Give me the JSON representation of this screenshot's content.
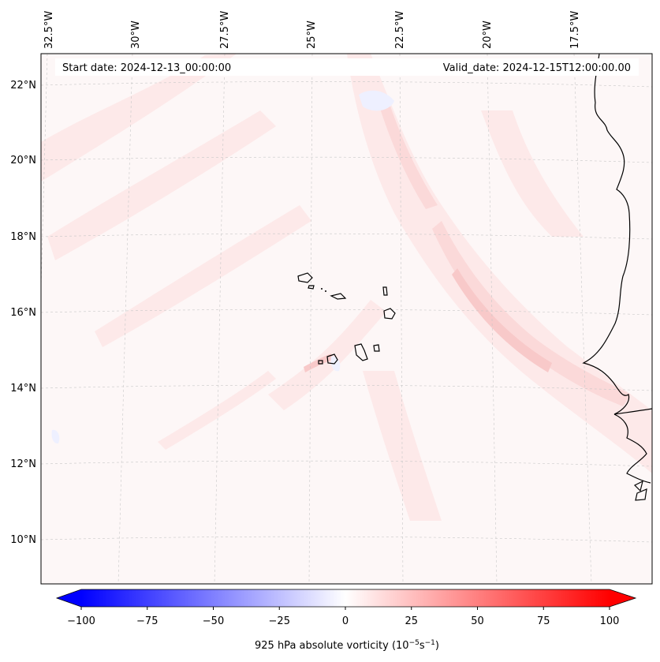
{
  "header": {
    "start_date": "Start date: 2024-12-13_00:00:00",
    "valid_date": "Valid_date: 2024-12-15T12:00:00.00"
  },
  "longitude_labels": [
    "32.5°W",
    "30°W",
    "27.5°W",
    "25°W",
    "22.5°W",
    "20°W",
    "17.5°W"
  ],
  "latitude_labels": [
    "22°N",
    "20°N",
    "18°N",
    "16°N",
    "14°N",
    "12°N",
    "10°N"
  ],
  "colorbar": {
    "ticks": [
      "−100",
      "−75",
      "−50",
      "−25",
      "0",
      "25",
      "50",
      "75",
      "100"
    ],
    "range": [
      -100,
      100
    ],
    "label_prefix": "925 hPa absolute vorticity (10",
    "label_exp1": "−5",
    "label_mid": "s",
    "label_exp2": "−1",
    "label_suffix": ")",
    "negative_color": "#0000ff",
    "neutral_color": "#ffffff",
    "positive_color": "#ff0000"
  },
  "map_colors": {
    "ocean_base": "#fdf7f7",
    "pink_weak": "#fde9e9",
    "pink_mid": "#fbd9d9",
    "pink_strong": "#f8c9c9",
    "blue_weak": "#eef0ff",
    "coastline": "#000000",
    "gridline": "#c8c8c8"
  }
}
